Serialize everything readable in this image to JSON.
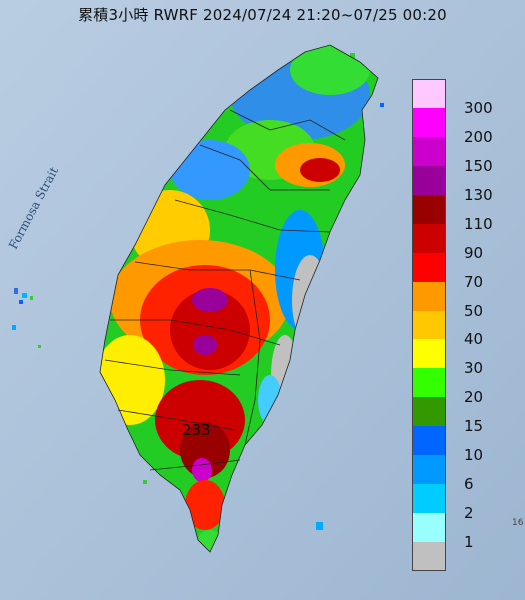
{
  "title": "累積3小時 RWRF 2024/07/24 21:20~07/25 00:20",
  "strait_label": "Formosa Strait",
  "peak_value": "233",
  "edge_text": "16",
  "legend": [
    {
      "label": "300",
      "color": "#ffc9ff"
    },
    {
      "label": "200",
      "color": "#ff00ff"
    },
    {
      "label": "150",
      "color": "#cc00cc"
    },
    {
      "label": "130",
      "color": "#990099"
    },
    {
      "label": "110",
      "color": "#990000"
    },
    {
      "label": "90",
      "color": "#cc0000"
    },
    {
      "label": "70",
      "color": "#ff0000"
    },
    {
      "label": "50",
      "color": "#ff9900"
    },
    {
      "label": "40",
      "color": "#ffc800"
    },
    {
      "label": "30",
      "color": "#ffff00"
    },
    {
      "label": "20",
      "color": "#33ff00"
    },
    {
      "label": "15",
      "color": "#339900"
    },
    {
      "label": "10",
      "color": "#0066ff"
    },
    {
      "label": "6",
      "color": "#0099ff"
    },
    {
      "label": "2",
      "color": "#00ccff"
    },
    {
      "label": "1",
      "color": "#99ffff"
    },
    {
      "label": "",
      "color": "#c0c0c0"
    }
  ]
}
